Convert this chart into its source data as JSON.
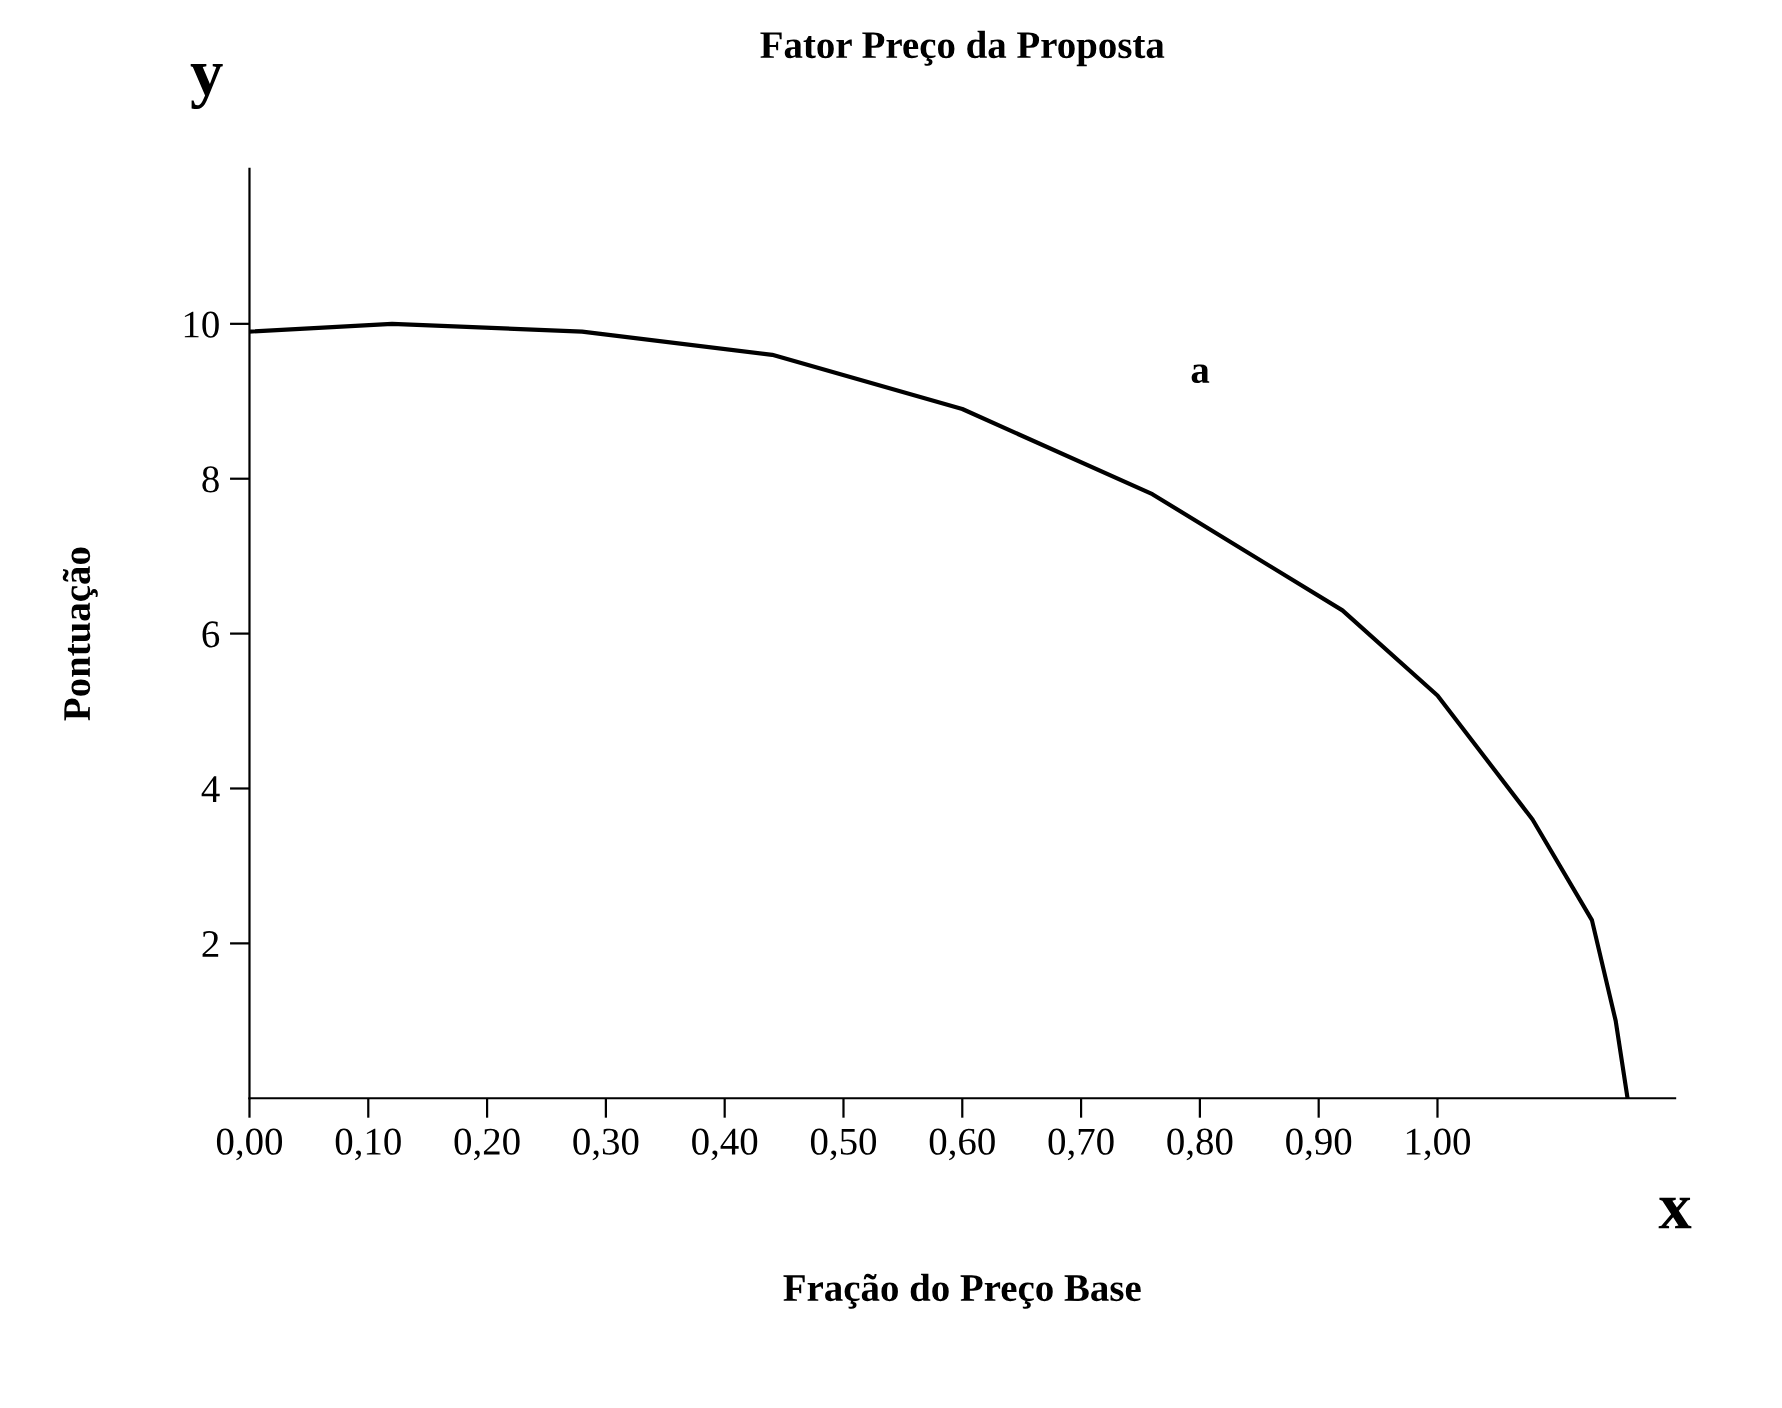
{
  "chart_data": {
    "type": "line",
    "title": "Fator Preço da Proposta",
    "xlabel": "Fração do Preço Base",
    "ylabel": "Pontuação",
    "x": [
      0,
      0.12,
      0.28,
      0.44,
      0.6,
      0.76,
      0.92,
      1.0,
      1.08,
      1.13,
      1.15,
      1.16
    ],
    "series": [
      {
        "color": "#000000",
        "values": [
          9.9,
          10,
          9.9,
          9.6,
          8.9,
          7.8,
          6.3,
          5.2,
          3.6,
          2.3,
          1.0,
          0
        ]
      }
    ],
    "xlim": [
      0,
      1.2
    ],
    "ylim": [
      0,
      12
    ],
    "xticks": [
      {
        "value": 0,
        "label": "0,00"
      },
      {
        "value": 0.1,
        "label": "0,10"
      },
      {
        "value": 0.2,
        "label": "0,20"
      },
      {
        "value": 0.3,
        "label": "0,30"
      },
      {
        "value": 0.4,
        "label": "0,40"
      },
      {
        "value": 0.5,
        "label": "0,50"
      },
      {
        "value": 0.6,
        "label": "0,60"
      },
      {
        "value": 0.7,
        "label": "0,70"
      },
      {
        "value": 0.8,
        "label": "0,80"
      },
      {
        "value": 0.9,
        "label": "0,90"
      },
      {
        "value": 1.0,
        "label": "1,00"
      }
    ],
    "yticks": [
      2,
      4,
      6,
      8,
      10
    ],
    "annotations": [
      "a",
      "y",
      "x"
    ],
    "grid": false,
    "legend": false,
    "marker": "none",
    "line_style": "solid"
  }
}
